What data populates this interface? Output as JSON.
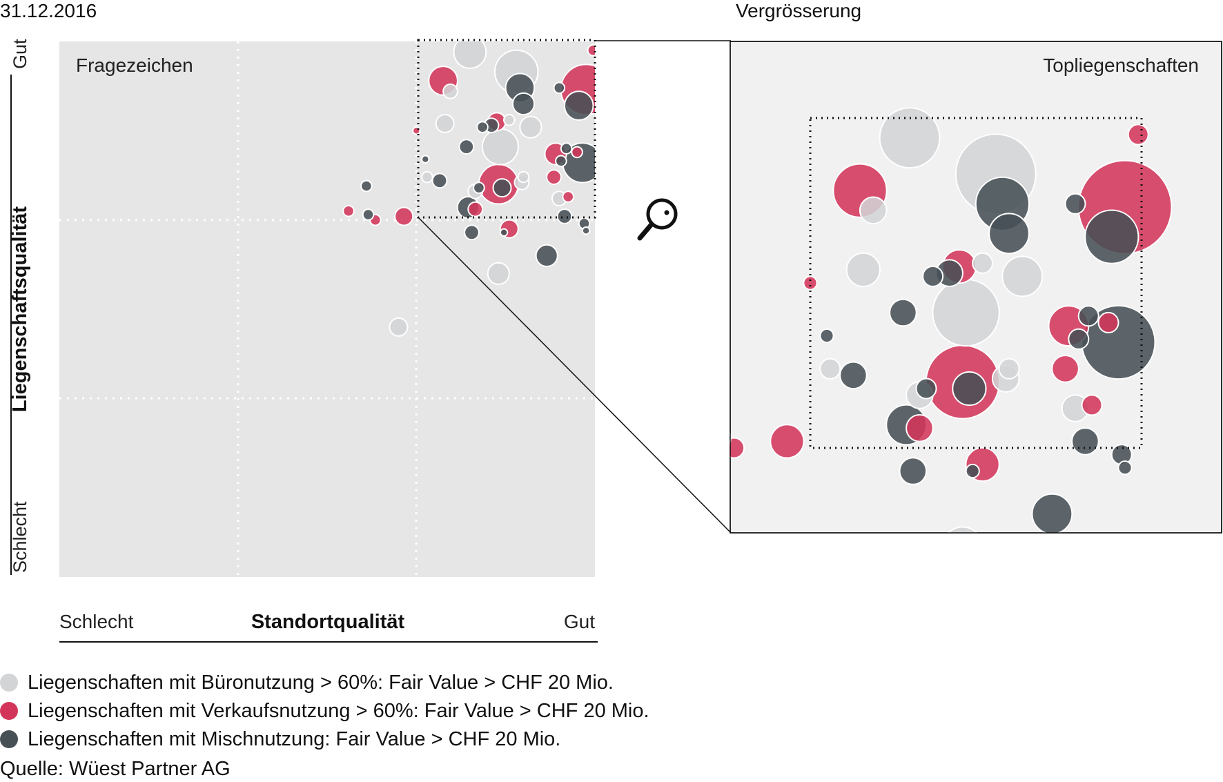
{
  "date": "31.12.2016",
  "zoom_title": "Vergrösserung",
  "source": "Quelle: Wüest Partner AG",
  "colors": {
    "office": "#d3d4d6",
    "retail": "#d3355a",
    "mixed": "#475055",
    "plot_bg": "#e6e6e6",
    "zoom_bg": "#f1f1f1",
    "bubble_stroke": "#ffffff"
  },
  "legend": [
    {
      "label": "Liegenschaften mit Büronutzung > 60%: Fair Value > CHF 20 Mio.",
      "color": "#d3d4d6"
    },
    {
      "label": "Liegenschaften mit Verkaufsnutzung > 60%: Fair Value > CHF 20 Mio.",
      "color": "#d3355a"
    },
    {
      "label": "Liegenschaften mit Mischnutzung: Fair Value > CHF 20 Mio.",
      "color": "#475055"
    }
  ],
  "icons": {
    "zoom": "magnifier-icon"
  },
  "chart_data": [
    {
      "type": "scatter",
      "name": "main",
      "title": "",
      "xlabel": "Standortqualität",
      "ylabel": "Liegenschaftsqualität",
      "x_tick_labels": [
        "Schlecht",
        "Gut"
      ],
      "y_tick_labels": [
        "Schlecht",
        "Gut"
      ],
      "quadrant_label": "Fragezeichen",
      "xlim": [
        0,
        3
      ],
      "ylim": [
        0,
        3
      ],
      "grid": "dotted",
      "highlight_window": {
        "xlim": [
          2,
          3
        ],
        "ylim": [
          2,
          3
        ]
      },
      "series": [
        {
          "name": "Büronutzung",
          "color": "#d3d4d6",
          "points": [
            [
              2.3,
              2.94,
              9
            ],
            [
              2.56,
              2.83,
              12
            ],
            [
              2.16,
              2.54,
              5
            ],
            [
              2.64,
              2.52,
              6
            ],
            [
              2.47,
              2.41,
              10
            ],
            [
              2.33,
              2.16,
              4
            ],
            [
              2.59,
              2.21,
              4
            ],
            [
              1.9,
              1.4,
              5
            ],
            [
              2.06,
              2.24,
              3
            ],
            [
              2.46,
              1.7,
              6
            ],
            [
              2.19,
              2.72,
              4
            ],
            [
              2.6,
              2.24,
              3
            ],
            [
              2.52,
              2.56,
              3
            ],
            [
              2.8,
              2.12,
              4
            ]
          ]
        },
        {
          "name": "Verkaufsnutzung",
          "color": "#d3355a",
          "points": [
            [
              2.95,
              2.73,
              14
            ],
            [
              2.15,
              2.78,
              8
            ],
            [
              2.46,
              2.2,
              11
            ],
            [
              2.77,
              2.24,
              4
            ],
            [
              2.9,
              2.38,
              3
            ],
            [
              2.85,
              2.13,
              3
            ],
            [
              2.0,
              2.5,
              2
            ],
            [
              1.93,
              2.02,
              5
            ],
            [
              1.62,
              2.05,
              3
            ],
            [
              1.77,
              2.0,
              3
            ],
            [
              2.33,
              2.06,
              4
            ],
            [
              2.45,
              2.55,
              5
            ],
            [
              2.78,
              2.37,
              6
            ],
            [
              2.52,
              1.95,
              5
            ],
            [
              2.99,
              2.95,
              3
            ]
          ]
        },
        {
          "name": "Mischnutzung",
          "color": "#475055",
          "points": [
            [
              2.58,
              2.74,
              8
            ],
            [
              2.6,
              2.65,
              6
            ],
            [
              2.91,
              2.64,
              8
            ],
            [
              2.42,
              2.53,
              4
            ],
            [
              2.93,
              2.32,
              11
            ],
            [
              2.28,
              2.41,
              4
            ],
            [
              2.48,
              2.18,
              5
            ],
            [
              2.29,
              2.07,
              6
            ],
            [
              2.13,
              2.22,
              4
            ],
            [
              2.35,
              2.18,
              3
            ],
            [
              2.81,
              2.33,
              3
            ],
            [
              2.05,
              2.34,
              2
            ],
            [
              2.73,
              1.8,
              6
            ],
            [
              1.73,
              2.03,
              3
            ],
            [
              1.72,
              2.19,
              3
            ],
            [
              2.31,
              1.93,
              4
            ],
            [
              2.37,
              2.52,
              3
            ],
            [
              2.8,
              2.74,
              3
            ],
            [
              2.84,
              2.4,
              3
            ],
            [
              2.49,
              1.93,
              2
            ],
            [
              2.83,
              2.02,
              4
            ],
            [
              2.94,
              1.98,
              3
            ],
            [
              2.95,
              1.94,
              2
            ]
          ]
        }
      ]
    },
    {
      "type": "scatter",
      "name": "zoom",
      "title": "Vergrösserung",
      "quadrant_label": "Topliegenschaften",
      "xlim": [
        2,
        3
      ],
      "ylim": [
        2,
        3
      ],
      "note": "enlarged view of the top-right quadrant of the main chart"
    }
  ]
}
